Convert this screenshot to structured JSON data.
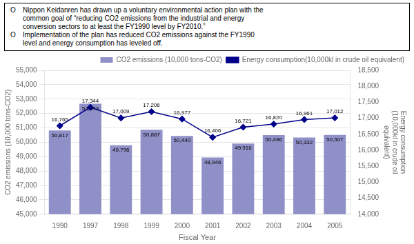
{
  "chart_data": {
    "type": "bar",
    "categories": [
      "1990",
      "1997",
      "1998",
      "1999",
      "2000",
      "2001",
      "2002",
      "2003",
      "2004",
      "2005"
    ],
    "series": [
      {
        "name": "CO2 emissions (10,000 tons-CO2)",
        "type": "bar",
        "color": "#9090c8",
        "axis": "y",
        "values": [
          50817,
          52673,
          49796,
          50867,
          50440,
          48946,
          49916,
          50496,
          50332,
          50507
        ],
        "value_labels": [
          "50,817",
          "52,673",
          "49,796",
          "50,867",
          "50,440",
          "48,946",
          "49,916",
          "50,496",
          "50,332",
          "50,507"
        ]
      },
      {
        "name": "Energy consumption(10,000kl in crude oil equivalent)",
        "type": "line",
        "color": "#00008B",
        "marker": "diamond",
        "axis": "y2",
        "values": [
          16765,
          17344,
          17009,
          17206,
          16977,
          16406,
          16721,
          16820,
          16961,
          17012
        ],
        "value_labels": [
          "16,765",
          "17,344",
          "17,009",
          "17,206",
          "16,977",
          "16,406",
          "16,721",
          "16,820",
          "16,961",
          "17,012"
        ]
      }
    ],
    "xlabel": "Fiscal Year",
    "ylabel": "CO2 emissions (10,000 tons-CO2)",
    "y2label": "Energy consumption\n(10,000kl in crude oil\nequivalent)",
    "ylim": [
      45000,
      55000
    ],
    "yticks": [
      {
        "value": 45000,
        "label": "45,000"
      },
      {
        "value": 46000,
        "label": "46,000"
      },
      {
        "value": 47000,
        "label": "47,000"
      },
      {
        "value": 48000,
        "label": "48,000"
      },
      {
        "value": 49000,
        "label": "49,000"
      },
      {
        "value": 50000,
        "label": "50,000"
      },
      {
        "value": 51000,
        "label": "51,000"
      },
      {
        "value": 52000,
        "label": "52,000"
      },
      {
        "value": 53000,
        "label": "53,000"
      },
      {
        "value": 54000,
        "label": "54,000"
      },
      {
        "value": 55000,
        "label": "55,000"
      }
    ],
    "y2lim": [
      14000,
      18500
    ],
    "y2ticks": [
      {
        "value": 14000,
        "label": "14,000"
      },
      {
        "value": 14500,
        "label": "14,500"
      },
      {
        "value": 15000,
        "label": "15,000"
      },
      {
        "value": 15500,
        "label": "15,500"
      },
      {
        "value": 16000,
        "label": "16,000"
      },
      {
        "value": 16500,
        "label": "16,500"
      },
      {
        "value": 17000,
        "label": "17,000"
      },
      {
        "value": 17500,
        "label": "17,500"
      },
      {
        "value": 18000,
        "label": "18,000"
      },
      {
        "value": 18500,
        "label": "18,500"
      }
    ],
    "grid": true,
    "legend": "top",
    "data_labels": true,
    "annotations": [
      {
        "bullet": "O",
        "lines": [
          "Nippon Keidanren has drawn up a voluntary environmental action plan with the",
          "common goal of “reducing CO2 emissions from the industrial and energy",
          "conversion sectors to at least the FY1990 level by FY2010.”"
        ]
      },
      {
        "bullet": "O",
        "lines": [
          "Implementation of the plan has reduced CO2 emissions against the FY1990",
          "level and energy consumption has leveled off."
        ]
      }
    ]
  }
}
